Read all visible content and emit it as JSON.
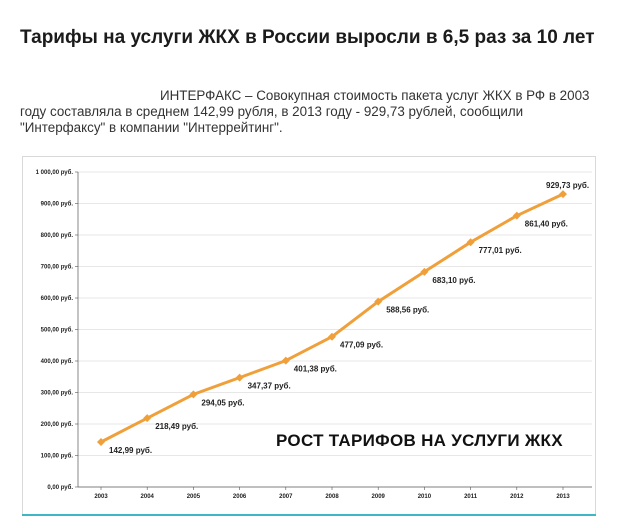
{
  "article": {
    "headline": "Тарифы на услуги ЖКХ в России выросли в 6,5 раз за 10 лет",
    "lead": "ИНТЕРФАКС – Совокупная стоимость пакета услуг ЖКХ в РФ в 2003 году составляла в среднем 142,99 рубля, в 2013 году - 929,73 рублей, сообщили \"Интерфаксу\" в компании \"Интеррейтинг\"."
  },
  "chart_data": {
    "type": "line",
    "title": "РОСТ ТАРИФОВ НА УСЛУГИ ЖКХ",
    "x": [
      "2003",
      "2004",
      "2005",
      "2006",
      "2007",
      "2008",
      "2009",
      "2010",
      "2011",
      "2012",
      "2013"
    ],
    "series": [
      {
        "values": [
          142.99,
          218.49,
          294.05,
          347.37,
          401.38,
          477.09,
          588.56,
          683.1,
          777.01,
          861.4,
          929.73
        ],
        "labels": [
          "142,99 руб.",
          "218,49 руб.",
          "294,05 руб.",
          "347,37 руб.",
          "401,38 руб.",
          "477,09 руб.",
          "588,56 руб.",
          "683,10 руб.",
          "777,01 руб.",
          "861,40 руб.",
          "929,73 руб."
        ],
        "color": "#f0a03a"
      }
    ],
    "ylim": [
      0,
      1000
    ],
    "yticks": [
      0,
      100,
      200,
      300,
      400,
      500,
      600,
      700,
      800,
      900,
      1000
    ],
    "ytick_labels": [
      "0,00 руб.",
      "100,00 руб.",
      "200,00 руб.",
      "300,00 руб.",
      "400,00 руб.",
      "500,00 руб.",
      "600,00 руб.",
      "700,00 руб.",
      "800,00 руб.",
      "900,00 руб.",
      "1 000,00 руб."
    ],
    "grid": true,
    "gridline_color": "#d0d0d0",
    "axis_color": "#555555",
    "accent_line_color": "#3fb6c4"
  }
}
